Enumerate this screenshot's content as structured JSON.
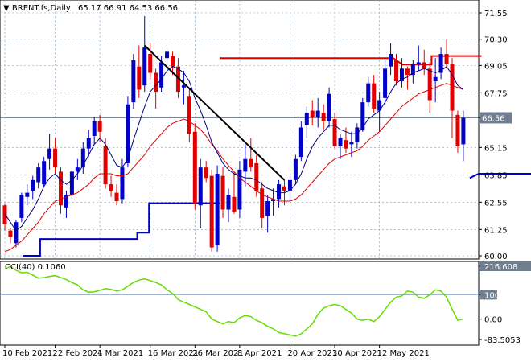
{
  "header": {
    "symbol": "BRENT.fs,Daily",
    "ohlc": "65.17 66.91 64.53 66.56"
  },
  "cci_header": "CCI(40) 0.1060",
  "price_axis": [
    "71.55",
    "70.30",
    "69.05",
    "67.75",
    "66.56",
    "65.15",
    "63.85",
    "62.55",
    "61.25",
    "60.00"
  ],
  "cci_axis": [
    "216.608",
    "100",
    "0.00",
    "-83.5053"
  ],
  "last_price_label": "66.56",
  "x_dates": [
    "10 Feb 2021",
    "22 Feb 2021",
    "4 Mar 2021",
    "16 Mar 2021",
    "26 Mar 2021",
    "8 Apr 2021",
    "20 Apr 2021",
    "30 Apr 2021",
    "12 May 2021"
  ],
  "colors": {
    "bull": "#0000c8",
    "bear": "#e00000",
    "fast_ma": "#000080",
    "slow_ma": "#e00000",
    "trendline": "#000000",
    "resistance": "#e00000",
    "support": "#0000c8",
    "cci": "#66dd00",
    "grid": "#7f9fbf",
    "last_price_bg": "#6f7f8f"
  },
  "chart_data": {
    "type": "candlestick",
    "title": "BRENT.fs,Daily",
    "price_range": [
      60.0,
      71.55
    ],
    "candles": [
      [
        62.4,
        62.5,
        61.2,
        61.5
      ],
      [
        61.2,
        61.3,
        60.6,
        60.9
      ],
      [
        60.6,
        61.7,
        60.4,
        61.6
      ],
      [
        61.8,
        63.0,
        61.6,
        62.9
      ],
      [
        62.8,
        63.4,
        62.4,
        63.0
      ],
      [
        63.1,
        63.8,
        62.7,
        63.6
      ],
      [
        63.5,
        64.4,
        63.2,
        64.2
      ],
      [
        63.4,
        64.7,
        63.3,
        64.5
      ],
      [
        64.6,
        65.8,
        64.1,
        65.1
      ],
      [
        65.1,
        65.6,
        63.9,
        64.2
      ],
      [
        64.0,
        64.2,
        62.0,
        62.4
      ],
      [
        62.3,
        63.1,
        61.8,
        62.9
      ],
      [
        62.9,
        64.1,
        62.7,
        64.0
      ],
      [
        64.0,
        64.6,
        63.6,
        64.2
      ],
      [
        64.2,
        65.4,
        63.9,
        65.1
      ],
      [
        65.1,
        66.0,
        64.7,
        65.6
      ],
      [
        65.7,
        66.6,
        65.3,
        66.4
      ],
      [
        66.4,
        66.7,
        65.4,
        65.9
      ],
      [
        65.2,
        65.6,
        63.2,
        63.4
      ],
      [
        63.4,
        63.8,
        62.8,
        63.1
      ],
      [
        63.0,
        63.4,
        62.4,
        62.6
      ],
      [
        62.7,
        64.6,
        62.5,
        64.2
      ],
      [
        64.4,
        67.6,
        64.2,
        67.2
      ],
      [
        67.3,
        69.6,
        67.0,
        69.3
      ],
      [
        69.0,
        70.0,
        67.5,
        67.9
      ],
      [
        68.1,
        71.4,
        67.8,
        69.9
      ],
      [
        69.6,
        70.1,
        68.4,
        68.7
      ],
      [
        68.7,
        68.9,
        67.0,
        67.8
      ],
      [
        68.0,
        69.5,
        67.8,
        69.2
      ],
      [
        69.4,
        69.9,
        68.6,
        69.7
      ],
      [
        69.5,
        69.7,
        68.6,
        69.0
      ],
      [
        69.0,
        69.4,
        67.5,
        67.8
      ],
      [
        68.0,
        68.8,
        67.2,
        68.1
      ],
      [
        67.6,
        68.0,
        65.4,
        65.8
      ],
      [
        65.9,
        66.3,
        62.2,
        62.5
      ],
      [
        62.4,
        64.6,
        61.3,
        64.2
      ],
      [
        64.2,
        64.5,
        63.5,
        63.7
      ],
      [
        63.8,
        64.1,
        60.2,
        60.4
      ],
      [
        60.5,
        64.3,
        60.2,
        63.9
      ],
      [
        63.8,
        64.2,
        61.8,
        62.2
      ],
      [
        62.2,
        63.2,
        61.6,
        62.9
      ],
      [
        62.8,
        64.0,
        62.0,
        62.1
      ],
      [
        62.2,
        64.5,
        61.8,
        64.1
      ],
      [
        64.0,
        65.3,
        63.3,
        64.6
      ],
      [
        64.6,
        65.6,
        64.0,
        64.2
      ],
      [
        64.4,
        64.8,
        62.8,
        63.1
      ],
      [
        63.2,
        63.5,
        61.3,
        61.8
      ],
      [
        61.9,
        62.9,
        61.1,
        62.6
      ],
      [
        62.6,
        63.2,
        61.9,
        62.7
      ],
      [
        62.7,
        63.6,
        62.3,
        63.4
      ],
      [
        63.3,
        63.6,
        62.4,
        63.1
      ],
      [
        63.1,
        63.8,
        62.6,
        63.6
      ],
      [
        63.6,
        64.8,
        63.4,
        64.6
      ],
      [
        64.7,
        66.4,
        64.5,
        66.1
      ],
      [
        66.2,
        67.1,
        65.6,
        66.8
      ],
      [
        66.9,
        67.4,
        66.2,
        66.6
      ],
      [
        66.6,
        67.5,
        66.1,
        66.9
      ],
      [
        66.8,
        67.2,
        66.0,
        66.4
      ],
      [
        66.4,
        68.0,
        66.1,
        67.7
      ],
      [
        66.5,
        66.8,
        65.1,
        65.2
      ],
      [
        65.2,
        65.8,
        64.6,
        65.6
      ],
      [
        65.5,
        66.1,
        64.9,
        65.1
      ],
      [
        65.3,
        65.9,
        64.7,
        65.4
      ],
      [
        65.4,
        66.3,
        65.1,
        66.1
      ],
      [
        66.0,
        67.5,
        65.9,
        67.3
      ],
      [
        67.3,
        68.5,
        67.1,
        68.2
      ],
      [
        68.2,
        68.6,
        66.8,
        67.0
      ],
      [
        66.9,
        67.8,
        65.9,
        67.4
      ],
      [
        67.5,
        69.3,
        67.2,
        68.9
      ],
      [
        69.0,
        70.1,
        68.6,
        69.6
      ],
      [
        69.3,
        69.6,
        68.1,
        68.3
      ],
      [
        68.3,
        69.4,
        68.0,
        68.9
      ],
      [
        68.9,
        69.0,
        67.9,
        68.6
      ],
      [
        68.6,
        69.3,
        68.2,
        69.1
      ],
      [
        69.1,
        70.0,
        68.8,
        69.2
      ],
      [
        69.2,
        69.8,
        68.6,
        68.9
      ],
      [
        68.9,
        69.2,
        66.8,
        67.4
      ],
      [
        68.3,
        69.4,
        67.3,
        68.5
      ],
      [
        68.7,
        69.9,
        68.4,
        69.6
      ],
      [
        69.6,
        70.3,
        68.9,
        69.1
      ],
      [
        69.1,
        69.4,
        65.6,
        66.9
      ],
      [
        66.7,
        66.9,
        64.9,
        65.2
      ],
      [
        65.3,
        66.9,
        64.5,
        66.56
      ]
    ],
    "fast_ma": [
      62.0,
      61.6,
      61.2,
      61.4,
      61.8,
      62.2,
      62.7,
      63.3,
      63.7,
      63.9,
      63.6,
      63.4,
      63.6,
      63.9,
      64.3,
      64.8,
      65.3,
      65.6,
      65.3,
      64.8,
      64.3,
      64.2,
      64.6,
      65.5,
      66.3,
      67.1,
      67.8,
      68.1,
      68.4,
      68.8,
      69.0,
      68.9,
      68.7,
      68.3,
      67.5,
      66.9,
      66.2,
      65.4,
      64.9,
      64.4,
      64.1,
      63.9,
      63.8,
      63.7,
      63.7,
      63.6,
      63.4,
      63.2,
      63.1,
      63.0,
      63.0,
      63.1,
      63.4,
      63.9,
      64.6,
      65.2,
      65.6,
      65.9,
      66.2,
      66.2,
      66.0,
      65.9,
      65.8,
      65.8,
      66.1,
      66.5,
      66.7,
      66.9,
      67.3,
      67.8,
      68.2,
      68.4,
      68.5,
      68.7,
      68.8,
      68.9,
      68.8,
      68.7,
      68.8,
      69.0,
      68.6,
      68.1,
      67.9
    ],
    "slow_ma": [
      60.2,
      60.3,
      60.5,
      60.7,
      61.0,
      61.3,
      61.6,
      62.0,
      62.3,
      62.6,
      62.7,
      62.8,
      62.9,
      63.0,
      63.2,
      63.4,
      63.7,
      63.9,
      63.9,
      63.9,
      63.8,
      63.8,
      63.9,
      64.2,
      64.5,
      64.8,
      65.2,
      65.5,
      65.8,
      66.1,
      66.3,
      66.4,
      66.5,
      66.4,
      66.2,
      66.0,
      65.7,
      65.3,
      65.0,
      64.6,
      64.3,
      64.0,
      63.7,
      63.5,
      63.3,
      63.1,
      62.9,
      62.8,
      62.7,
      62.6,
      62.6,
      62.6,
      62.7,
      62.9,
      63.2,
      63.5,
      63.8,
      64.1,
      64.4,
      64.6,
      64.7,
      64.8,
      64.9,
      65.0,
      65.2,
      65.5,
      65.7,
      65.9,
      66.2,
      66.5,
      66.8,
      67.1,
      67.3,
      67.5,
      67.7,
      67.8,
      67.9,
      68.0,
      68.1,
      68.2,
      68.1,
      68.0,
      67.9
    ],
    "cci": [
      205,
      216,
      200,
      190,
      192,
      180,
      168,
      170,
      175,
      178,
      170,
      162,
      150,
      140,
      120,
      110,
      112,
      118,
      125,
      122,
      115,
      120,
      135,
      150,
      160,
      165,
      158,
      150,
      140,
      120,
      105,
      80,
      70,
      60,
      50,
      40,
      30,
      0,
      -10,
      -20,
      -10,
      -15,
      5,
      15,
      10,
      -5,
      -15,
      -30,
      -40,
      -55,
      -60,
      -65,
      -70,
      -60,
      -40,
      -20,
      20,
      45,
      55,
      60,
      55,
      40,
      25,
      0,
      -5,
      0,
      -10,
      10,
      40,
      70,
      90,
      95,
      115,
      110,
      90,
      85,
      100,
      120,
      115,
      90,
      40,
      -5,
      0
    ]
  }
}
